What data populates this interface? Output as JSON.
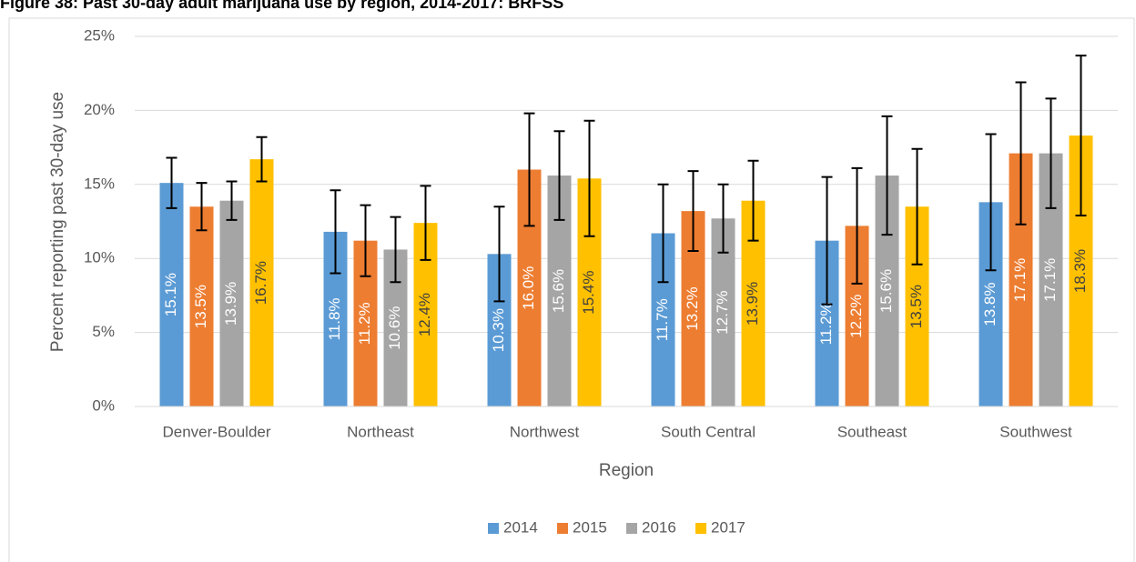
{
  "chart_data": {
    "type": "bar",
    "title": "Figure 38: Past 30-day adult marijuana use by region, 2014-2017: BRFSS",
    "x_label": "Region",
    "y_label": "Percent reporting past 30-day use",
    "categories": [
      "Denver-Boulder",
      "Northeast",
      "Northwest",
      "South Central",
      "Southeast",
      "Southwest"
    ],
    "series": [
      {
        "name": "2014",
        "color": "#5b9bd5",
        "label_color": "#ffffff",
        "values": [
          15.1,
          11.8,
          10.3,
          11.7,
          11.2,
          13.8
        ],
        "value_labels": [
          "15.1%",
          "11.8%",
          "10.3%",
          "11.7%",
          "11.2%",
          "13.8%"
        ],
        "errors": [
          1.7,
          2.8,
          3.2,
          3.3,
          4.3,
          4.6
        ]
      },
      {
        "name": "2015",
        "color": "#ed7d31",
        "label_color": "#ffffff",
        "values": [
          13.5,
          11.2,
          16.0,
          13.2,
          12.2,
          17.1
        ],
        "value_labels": [
          "13.5%",
          "11.2%",
          "16.0%",
          "13.2%",
          "12.2%",
          "17.1%"
        ],
        "errors": [
          1.6,
          2.4,
          3.8,
          2.7,
          3.9,
          4.8
        ]
      },
      {
        "name": "2016",
        "color": "#a5a5a5",
        "label_color": "#ffffff",
        "values": [
          13.9,
          10.6,
          15.6,
          12.7,
          15.6,
          17.1
        ],
        "value_labels": [
          "13.9%",
          "10.6%",
          "15.6%",
          "12.7%",
          "15.6%",
          "17.1%"
        ],
        "errors": [
          1.3,
          2.2,
          3.0,
          2.3,
          4.0,
          3.7
        ]
      },
      {
        "name": "2017",
        "color": "#ffc000",
        "label_color": "#404040",
        "values": [
          16.7,
          12.4,
          15.4,
          13.9,
          13.5,
          18.3
        ],
        "value_labels": [
          "16.7%",
          "12.4%",
          "15.4%",
          "13.9%",
          "13.5%",
          "18.3%"
        ],
        "errors": [
          1.5,
          2.5,
          3.9,
          2.7,
          3.9,
          5.4
        ]
      }
    ],
    "ylim": [
      0,
      25
    ],
    "yticks": [
      {
        "value": 0,
        "label": "0%"
      },
      {
        "value": 5,
        "label": "5%"
      },
      {
        "value": 10,
        "label": "10%"
      },
      {
        "value": 15,
        "label": "15%"
      },
      {
        "value": 20,
        "label": "20%"
      },
      {
        "value": 25,
        "label": "25%"
      }
    ],
    "grid": true,
    "legend": "bottom"
  }
}
